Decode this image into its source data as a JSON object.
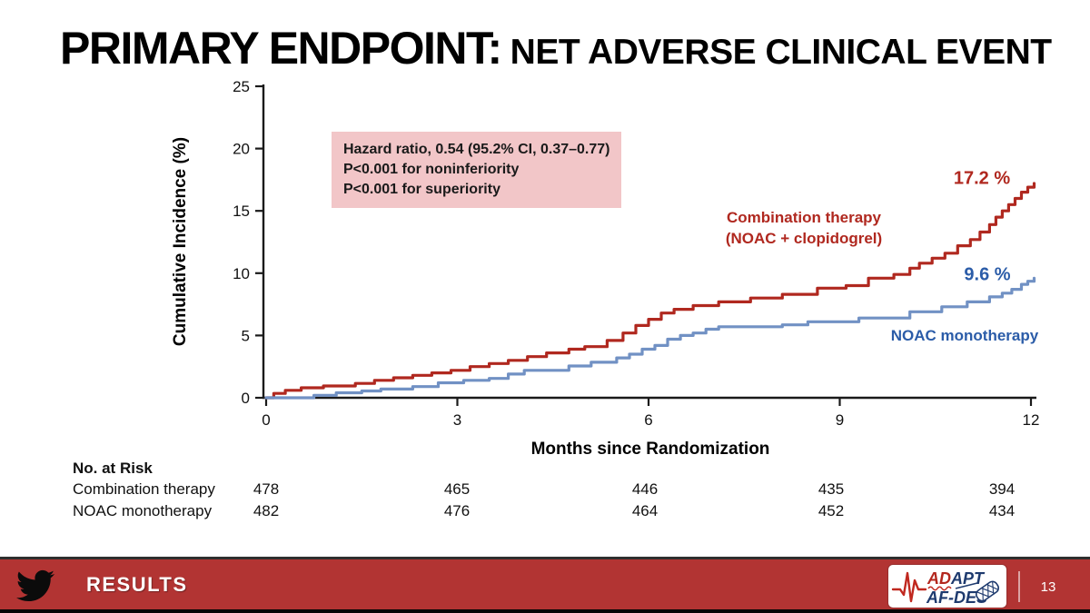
{
  "slide": {
    "title_main": "PRIMARY ENDPOINT:",
    "title_sub": "NET ADVERSE CLINICAL EVENT"
  },
  "colors": {
    "combo_red": "#b0281f",
    "noac_line_blue": "#7191c4",
    "noac_text_blue": "#2b5ca8",
    "annotation_bg_pink": "#f2c6c8",
    "footer_bar_red": "#b23433",
    "axis_black": "#1a1a1a",
    "logo_navy": "#1e3a6e"
  },
  "chart_data": {
    "type": "line",
    "subtype": "kaplan-meier-step",
    "title": "",
    "xlabel": "Months since Randomization",
    "ylabel": "Cumulative Incidence (%)",
    "xlim": [
      0,
      12
    ],
    "ylim": [
      0,
      25
    ],
    "xticks": [
      0,
      3,
      6,
      9,
      12
    ],
    "yticks": [
      0,
      5,
      10,
      15,
      20,
      25
    ],
    "grid": false,
    "annotations": {
      "line1": "Hazard ratio, 0.54 (95.2% CI, 0.37–0.77)",
      "line2": "P<0.001 for noninferiority",
      "line3": "P<0.001 for superiority"
    },
    "series": [
      {
        "name": "Combination therapy (NOAC + clopidogrel)",
        "name_line1": "Combination therapy",
        "name_line2": "(NOAC + clopidogrel)",
        "end_label": "17.2 %",
        "end_value": 17.2,
        "color": "#b0281f",
        "steps": [
          [
            0,
            0
          ],
          [
            0.12,
            0.35
          ],
          [
            0.3,
            0.6
          ],
          [
            0.55,
            0.8
          ],
          [
            0.9,
            0.95
          ],
          [
            1.4,
            1.15
          ],
          [
            1.7,
            1.4
          ],
          [
            2.0,
            1.6
          ],
          [
            2.3,
            1.8
          ],
          [
            2.6,
            2.0
          ],
          [
            2.9,
            2.2
          ],
          [
            3.2,
            2.5
          ],
          [
            3.5,
            2.75
          ],
          [
            3.8,
            3.0
          ],
          [
            4.1,
            3.3
          ],
          [
            4.4,
            3.6
          ],
          [
            4.75,
            3.9
          ],
          [
            5.0,
            4.1
          ],
          [
            5.35,
            4.6
          ],
          [
            5.6,
            5.2
          ],
          [
            5.8,
            5.8
          ],
          [
            6.0,
            6.3
          ],
          [
            6.2,
            6.8
          ],
          [
            6.4,
            7.1
          ],
          [
            6.7,
            7.4
          ],
          [
            7.1,
            7.7
          ],
          [
            7.6,
            8.0
          ],
          [
            8.1,
            8.3
          ],
          [
            8.65,
            8.8
          ],
          [
            9.1,
            9.0
          ],
          [
            9.45,
            9.6
          ],
          [
            9.85,
            9.9
          ],
          [
            10.1,
            10.4
          ],
          [
            10.25,
            10.8
          ],
          [
            10.45,
            11.2
          ],
          [
            10.65,
            11.6
          ],
          [
            10.85,
            12.2
          ],
          [
            11.05,
            12.7
          ],
          [
            11.2,
            13.3
          ],
          [
            11.35,
            13.9
          ],
          [
            11.45,
            14.5
          ],
          [
            11.55,
            15.0
          ],
          [
            11.65,
            15.5
          ],
          [
            11.75,
            16.0
          ],
          [
            11.85,
            16.5
          ],
          [
            11.95,
            16.9
          ],
          [
            12.05,
            17.2
          ]
        ]
      },
      {
        "name": "NOAC monotherapy",
        "end_label": "9.6 %",
        "end_value": 9.6,
        "color": "#7191c4",
        "text_color": "#2b5ca8",
        "steps": [
          [
            0,
            0
          ],
          [
            0.75,
            0.2
          ],
          [
            1.1,
            0.4
          ],
          [
            1.5,
            0.55
          ],
          [
            1.8,
            0.7
          ],
          [
            2.3,
            0.9
          ],
          [
            2.7,
            1.2
          ],
          [
            3.1,
            1.4
          ],
          [
            3.5,
            1.55
          ],
          [
            3.8,
            1.9
          ],
          [
            4.05,
            2.2
          ],
          [
            4.75,
            2.55
          ],
          [
            5.1,
            2.85
          ],
          [
            5.5,
            3.2
          ],
          [
            5.7,
            3.5
          ],
          [
            5.9,
            3.9
          ],
          [
            6.1,
            4.2
          ],
          [
            6.3,
            4.7
          ],
          [
            6.5,
            5.0
          ],
          [
            6.7,
            5.2
          ],
          [
            6.9,
            5.5
          ],
          [
            7.1,
            5.7
          ],
          [
            8.1,
            5.85
          ],
          [
            8.5,
            6.1
          ],
          [
            9.3,
            6.4
          ],
          [
            10.1,
            6.9
          ],
          [
            10.6,
            7.3
          ],
          [
            11.0,
            7.7
          ],
          [
            11.35,
            8.1
          ],
          [
            11.55,
            8.4
          ],
          [
            11.7,
            8.7
          ],
          [
            11.85,
            9.1
          ],
          [
            11.95,
            9.35
          ],
          [
            12.05,
            9.6
          ]
        ]
      }
    ],
    "at_risk": {
      "title": "No. at Risk",
      "months": [
        0,
        3,
        6,
        9,
        12
      ],
      "rows": [
        {
          "label": "Combination therapy",
          "values": [
            "478",
            "465",
            "446",
            "435",
            "394"
          ]
        },
        {
          "label": "NOAC monotherapy",
          "values": [
            "482",
            "476",
            "464",
            "452",
            "434"
          ]
        }
      ]
    }
  },
  "footer": {
    "section_label": "RESULTS",
    "page_number": "13",
    "logo_text_top_red": "AD",
    "logo_text_top_navy": "APT",
    "logo_text_bottom": "AF-DES"
  }
}
